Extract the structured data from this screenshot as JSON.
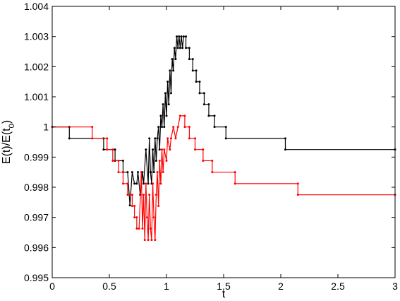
{
  "chart_data": {
    "type": "line",
    "title": "",
    "xlabel": "t",
    "ylabel": "E(t)/E(t0)",
    "xlim": [
      0,
      3
    ],
    "ylim": [
      0.995,
      1.004
    ],
    "x_ticks": [
      "0",
      "0.5",
      "1",
      "1.5",
      "2",
      "2.5",
      "3"
    ],
    "y_ticks": [
      "0.995",
      "0.996",
      "0.997",
      "0.998",
      "0.999",
      "1",
      "1.001",
      "1.002",
      "1.003",
      "1.004"
    ],
    "grid": false,
    "legend": "none",
    "series": [
      {
        "color": "#000000",
        "marker": "dot",
        "points": [
          [
            0.0,
            1.0
          ],
          [
            0.15,
            1.0
          ],
          [
            0.15,
            0.99962
          ],
          [
            0.45,
            0.99962
          ],
          [
            0.45,
            0.99925
          ],
          [
            0.55,
            0.99925
          ],
          [
            0.55,
            0.99888
          ],
          [
            0.62,
            0.99888
          ],
          [
            0.62,
            0.9985
          ],
          [
            0.66,
            0.9985
          ],
          [
            0.68,
            0.9974
          ],
          [
            0.7,
            0.9985
          ],
          [
            0.72,
            0.99812
          ],
          [
            0.74,
            0.99812
          ],
          [
            0.75,
            0.9985
          ],
          [
            0.77,
            0.99775
          ],
          [
            0.79,
            0.9985
          ],
          [
            0.8,
            0.99812
          ],
          [
            0.82,
            0.99925
          ],
          [
            0.84,
            0.99812
          ],
          [
            0.85,
            0.99962
          ],
          [
            0.86,
            0.9985
          ],
          [
            0.87,
            0.99812
          ],
          [
            0.88,
            0.99925
          ],
          [
            0.89,
            0.9985
          ],
          [
            0.9,
            0.99962
          ],
          [
            0.91,
            0.99888
          ],
          [
            0.92,
            0.99962
          ],
          [
            0.93,
            1.0
          ],
          [
            0.94,
            0.99925
          ],
          [
            0.95,
            1.00037
          ],
          [
            0.96,
            1.0
          ],
          [
            0.97,
            1.00075
          ],
          [
            0.98,
            1.0
          ],
          [
            0.99,
            1.00112
          ],
          [
            1.0,
            1.00037
          ],
          [
            1.01,
            1.0015
          ],
          [
            1.02,
            1.00075
          ],
          [
            1.03,
            1.00187
          ],
          [
            1.04,
            1.00112
          ],
          [
            1.05,
            1.00225
          ],
          [
            1.06,
            1.00187
          ],
          [
            1.07,
            1.00262
          ],
          [
            1.08,
            1.00225
          ],
          [
            1.09,
            1.003
          ],
          [
            1.1,
            1.00262
          ],
          [
            1.11,
            1.003
          ],
          [
            1.12,
            1.00262
          ],
          [
            1.13,
            1.003
          ],
          [
            1.14,
            1.00262
          ],
          [
            1.15,
            1.003
          ],
          [
            1.17,
            1.003
          ],
          [
            1.17,
            1.00262
          ],
          [
            1.2,
            1.00262
          ],
          [
            1.2,
            1.00225
          ],
          [
            1.23,
            1.00225
          ],
          [
            1.23,
            1.00187
          ],
          [
            1.26,
            1.00187
          ],
          [
            1.26,
            1.0015
          ],
          [
            1.29,
            1.0015
          ],
          [
            1.29,
            1.00112
          ],
          [
            1.33,
            1.00112
          ],
          [
            1.33,
            1.00075
          ],
          [
            1.37,
            1.00075
          ],
          [
            1.37,
            1.00037
          ],
          [
            1.42,
            1.00037
          ],
          [
            1.42,
            1.0
          ],
          [
            1.52,
            1.0
          ],
          [
            1.52,
            0.99962
          ],
          [
            2.04,
            0.99962
          ],
          [
            2.04,
            0.99925
          ],
          [
            3.0,
            0.99925
          ]
        ]
      },
      {
        "color": "#ff0000",
        "marker": "dot",
        "points": [
          [
            0.0,
            1.0
          ],
          [
            0.35,
            1.0
          ],
          [
            0.35,
            0.99962
          ],
          [
            0.48,
            0.99962
          ],
          [
            0.48,
            0.99925
          ],
          [
            0.53,
            0.99925
          ],
          [
            0.53,
            0.99888
          ],
          [
            0.58,
            0.99888
          ],
          [
            0.58,
            0.9985
          ],
          [
            0.62,
            0.9985
          ],
          [
            0.62,
            0.99812
          ],
          [
            0.66,
            0.99812
          ],
          [
            0.66,
            0.99775
          ],
          [
            0.7,
            0.99775
          ],
          [
            0.7,
            0.99738
          ],
          [
            0.72,
            0.99738
          ],
          [
            0.72,
            0.997
          ],
          [
            0.74,
            0.997
          ],
          [
            0.74,
            0.99663
          ],
          [
            0.76,
            0.99663
          ],
          [
            0.78,
            0.9985
          ],
          [
            0.79,
            0.99663
          ],
          [
            0.8,
            0.99775
          ],
          [
            0.81,
            0.99625
          ],
          [
            0.82,
            0.99812
          ],
          [
            0.83,
            0.997
          ],
          [
            0.84,
            0.99625
          ],
          [
            0.85,
            0.99775
          ],
          [
            0.86,
            0.99663
          ],
          [
            0.87,
            0.99625
          ],
          [
            0.88,
            0.99812
          ],
          [
            0.89,
            0.997
          ],
          [
            0.9,
            0.99625
          ],
          [
            0.91,
            0.99775
          ],
          [
            0.92,
            0.9985
          ],
          [
            0.93,
            0.99738
          ],
          [
            0.94,
            0.99888
          ],
          [
            0.95,
            0.99812
          ],
          [
            0.96,
            0.99925
          ],
          [
            0.97,
            0.9985
          ],
          [
            0.98,
            0.99925
          ],
          [
            1.0,
            0.99888
          ],
          [
            1.01,
            0.99962
          ],
          [
            1.03,
            0.99925
          ],
          [
            1.04,
            0.99962
          ],
          [
            1.06,
            1.0
          ],
          [
            1.08,
            0.99962
          ],
          [
            1.1,
            1.0
          ],
          [
            1.12,
            1.00037
          ],
          [
            1.16,
            1.00037
          ],
          [
            1.16,
            1.0
          ],
          [
            1.2,
            1.0
          ],
          [
            1.2,
            0.99962
          ],
          [
            1.25,
            0.99962
          ],
          [
            1.25,
            0.99925
          ],
          [
            1.32,
            0.99925
          ],
          [
            1.32,
            0.99888
          ],
          [
            1.4,
            0.99888
          ],
          [
            1.4,
            0.9985
          ],
          [
            1.6,
            0.9985
          ],
          [
            1.6,
            0.99812
          ],
          [
            2.15,
            0.99812
          ],
          [
            2.15,
            0.99775
          ],
          [
            3.0,
            0.99775
          ]
        ]
      }
    ]
  }
}
